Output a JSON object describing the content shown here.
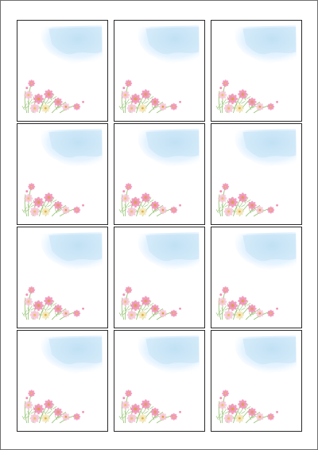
{
  "sheet": {
    "rows": 4,
    "columns": 3,
    "card_count": 12
  },
  "colors": {
    "sky": "#bfe0f3",
    "sky_light": "#dcefff",
    "petal_pink": "#f08fb4",
    "petal_light": "#f7c4d6",
    "petal_cream": "#f5e6b8",
    "stem_green": "#8fbf6a",
    "border": "#2b2b2b"
  },
  "icons": {
    "card_art": [
      "watercolor-sky",
      "cosmos-flowers"
    ]
  }
}
